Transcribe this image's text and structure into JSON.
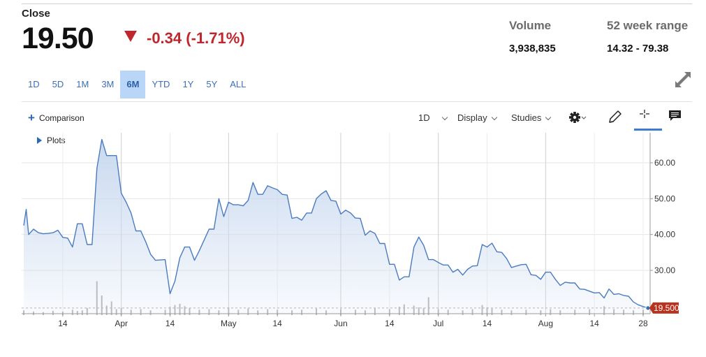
{
  "header": {
    "close_label": "Close",
    "price": "19.50",
    "change": "-0.34 (-1.71%)",
    "change_direction": "down",
    "change_color": "#c0262e",
    "volume_label": "Volume",
    "volume_value": "3,938,835",
    "range_label": "52 week range",
    "range_value": "14.32 - 79.38"
  },
  "ranges": [
    {
      "label": "1D",
      "active": false
    },
    {
      "label": "5D",
      "active": false
    },
    {
      "label": "1M",
      "active": false
    },
    {
      "label": "3M",
      "active": false
    },
    {
      "label": "6M",
      "active": true
    },
    {
      "label": "YTD",
      "active": false
    },
    {
      "label": "1Y",
      "active": false
    },
    {
      "label": "5Y",
      "active": false
    },
    {
      "label": "ALL",
      "active": false
    }
  ],
  "toolbar": {
    "comparison_label": "Comparison",
    "plots_label": "Plots",
    "interval_label": "1D",
    "display_label": "Display",
    "studies_label": "Studies",
    "icons": [
      "gear-icon",
      "pencil-icon",
      "crosshair-icon",
      "comment-icon"
    ]
  },
  "chart_data": {
    "type": "area",
    "line_color": "#4a7bbf",
    "fill_color": "#c9d9ef",
    "last_price_label": "19.500",
    "last_price_color": "#b8321f",
    "ylim": [
      20,
      68
    ],
    "y_ticks": [
      {
        "value": 30,
        "label": "30.00"
      },
      {
        "value": 40,
        "label": "40.00"
      },
      {
        "value": 50,
        "label": "50.00"
      },
      {
        "value": 60,
        "label": "60.00"
      }
    ],
    "x_range": [
      0,
      128
    ],
    "x_ticks": [
      {
        "x": 8,
        "label": "14"
      },
      {
        "x": 20,
        "label": "Apr"
      },
      {
        "x": 30,
        "label": "14"
      },
      {
        "x": 42,
        "label": "May"
      },
      {
        "x": 52,
        "label": "14"
      },
      {
        "x": 65,
        "label": "Jun"
      },
      {
        "x": 75,
        "label": "14"
      },
      {
        "x": 85,
        "label": "Jul"
      },
      {
        "x": 95,
        "label": "14"
      },
      {
        "x": 107,
        "label": "Aug"
      },
      {
        "x": 117,
        "label": "14"
      },
      {
        "x": 127,
        "label": "28"
      }
    ],
    "month_lines": [
      20,
      42,
      65,
      85,
      107
    ],
    "series": [
      {
        "values": [
          [
            0,
            42.5
          ],
          [
            0.5,
            47
          ],
          [
            1,
            40
          ],
          [
            2,
            41.5
          ],
          [
            3,
            40.5
          ],
          [
            4,
            40.2
          ],
          [
            5,
            40.3
          ],
          [
            6,
            40.5
          ],
          [
            7,
            41.2
          ],
          [
            8,
            39.2
          ],
          [
            9,
            39
          ],
          [
            10,
            36.5
          ],
          [
            11,
            43
          ],
          [
            12,
            43
          ],
          [
            13,
            37.2
          ],
          [
            14,
            37.2
          ],
          [
            15,
            58.5
          ],
          [
            16,
            66.5
          ],
          [
            17,
            62
          ],
          [
            18,
            62
          ],
          [
            19,
            62
          ],
          [
            20,
            51.5
          ],
          [
            21,
            49
          ],
          [
            22,
            46
          ],
          [
            23,
            41
          ],
          [
            24,
            41
          ],
          [
            25,
            38
          ],
          [
            26,
            34.5
          ],
          [
            27,
            32.8
          ],
          [
            28,
            32.9
          ],
          [
            29,
            33
          ],
          [
            30,
            23.5
          ],
          [
            31,
            27
          ],
          [
            32,
            33.5
          ],
          [
            33,
            36.5
          ],
          [
            34,
            36.5
          ],
          [
            35,
            32.8
          ],
          [
            36,
            35.5
          ],
          [
            37,
            38.5
          ],
          [
            38,
            41.5
          ],
          [
            39,
            41.5
          ],
          [
            40,
            50
          ],
          [
            41,
            45
          ],
          [
            42,
            49
          ],
          [
            43,
            48.3
          ],
          [
            44,
            48.3
          ],
          [
            45,
            48
          ],
          [
            46,
            49.5
          ],
          [
            47,
            54.5
          ],
          [
            48,
            51.2
          ],
          [
            49,
            51.2
          ],
          [
            50,
            53.6
          ],
          [
            51,
            53
          ],
          [
            52,
            52.5
          ],
          [
            53,
            51.2
          ],
          [
            54,
            51
          ],
          [
            55,
            44.5
          ],
          [
            56,
            44.8
          ],
          [
            57,
            44
          ],
          [
            58,
            46
          ],
          [
            59,
            46
          ],
          [
            60,
            50
          ],
          [
            61,
            51.3
          ],
          [
            62,
            52.2
          ],
          [
            63,
            49.5
          ],
          [
            64,
            49.3
          ],
          [
            65,
            45.7
          ],
          [
            66,
            46.8
          ],
          [
            67,
            46
          ],
          [
            68,
            44.6
          ],
          [
            69,
            44.5
          ],
          [
            70,
            39.8
          ],
          [
            71,
            41
          ],
          [
            72,
            40.3
          ],
          [
            73,
            37.5
          ],
          [
            74,
            37.5
          ],
          [
            75,
            31.7
          ],
          [
            76,
            31.7
          ],
          [
            77,
            27.3
          ],
          [
            78,
            28.2
          ],
          [
            79,
            28.2
          ],
          [
            80,
            36.5
          ],
          [
            81,
            39.3
          ],
          [
            82,
            37
          ],
          [
            83,
            33
          ],
          [
            84,
            33
          ],
          [
            85,
            32.2
          ],
          [
            86,
            31.5
          ],
          [
            87,
            31.5
          ],
          [
            88,
            29.5
          ],
          [
            89,
            30.3
          ],
          [
            90,
            28.7
          ],
          [
            91,
            30.3
          ],
          [
            92,
            31.2
          ],
          [
            93,
            31.3
          ],
          [
            94,
            37.2
          ],
          [
            95,
            36.5
          ],
          [
            96,
            37.6
          ],
          [
            97,
            35.2
          ],
          [
            98,
            35
          ],
          [
            99,
            33.3
          ],
          [
            100,
            30.8
          ],
          [
            101,
            31.2
          ],
          [
            102,
            31.6
          ],
          [
            103,
            31.7
          ],
          [
            104,
            28.8
          ],
          [
            105,
            28.6
          ],
          [
            106,
            27.5
          ],
          [
            107,
            29.5
          ],
          [
            108,
            29.5
          ],
          [
            109,
            27.5
          ],
          [
            110,
            25.8
          ],
          [
            111,
            26.7
          ],
          [
            112,
            26.5
          ],
          [
            113,
            26.5
          ],
          [
            114,
            24.8
          ],
          [
            115,
            24.7
          ],
          [
            116,
            24.2
          ],
          [
            117,
            23.7
          ],
          [
            118,
            23.8
          ],
          [
            119,
            22.3
          ],
          [
            120,
            24.8
          ],
          [
            121,
            23.3
          ],
          [
            122,
            23.5
          ],
          [
            123,
            23
          ],
          [
            124,
            22.8
          ],
          [
            125,
            21.2
          ],
          [
            126,
            20.4
          ],
          [
            127,
            19.9
          ],
          [
            128,
            19.5
          ]
        ]
      }
    ],
    "volume": [
      [
        0,
        0.8
      ],
      [
        2,
        0.6
      ],
      [
        4,
        0.5
      ],
      [
        6,
        0.7
      ],
      [
        8,
        0.6
      ],
      [
        10,
        0.9
      ],
      [
        11,
        0.7
      ],
      [
        12,
        0.8
      ],
      [
        13,
        1.2
      ],
      [
        15,
        5.7
      ],
      [
        16,
        3.3
      ],
      [
        17,
        1.6
      ],
      [
        18,
        2.3
      ],
      [
        19,
        1.0
      ],
      [
        20,
        1.2
      ],
      [
        22,
        0.9
      ],
      [
        24,
        1.0
      ],
      [
        26,
        0.8
      ],
      [
        29,
        0.9
      ],
      [
        30,
        1.4
      ],
      [
        31,
        1.7
      ],
      [
        32,
        1.9
      ],
      [
        33,
        1.5
      ],
      [
        34,
        1.2
      ],
      [
        36,
        0.9
      ],
      [
        38,
        1.0
      ],
      [
        40,
        0.8
      ],
      [
        42,
        1.3
      ],
      [
        44,
        0.9
      ],
      [
        46,
        1.1
      ],
      [
        48,
        0.8
      ],
      [
        50,
        1.0
      ],
      [
        52,
        0.9
      ],
      [
        55,
        0.8
      ],
      [
        57,
        0.9
      ],
      [
        60,
        1.1
      ],
      [
        62,
        0.8
      ],
      [
        65,
        1.0
      ],
      [
        68,
        0.9
      ],
      [
        70,
        0.8
      ],
      [
        72,
        1.2
      ],
      [
        75,
        1.0
      ],
      [
        77,
        1.4
      ],
      [
        78,
        1.8
      ],
      [
        80,
        1.6
      ],
      [
        81,
        1.3
      ],
      [
        82,
        1.2
      ],
      [
        83,
        3.0
      ],
      [
        85,
        1.0
      ],
      [
        87,
        0.9
      ],
      [
        90,
        0.8
      ],
      [
        92,
        1.0
      ],
      [
        94,
        1.7
      ],
      [
        95,
        1.3
      ],
      [
        96,
        1.1
      ],
      [
        98,
        0.9
      ],
      [
        100,
        0.8
      ],
      [
        103,
        0.9
      ],
      [
        106,
        0.8
      ],
      [
        108,
        1.0
      ],
      [
        110,
        0.8
      ],
      [
        113,
        0.9
      ],
      [
        116,
        1.0
      ],
      [
        119,
        1.5
      ],
      [
        121,
        1.0
      ],
      [
        123,
        0.9
      ],
      [
        125,
        0.8
      ],
      [
        127,
        0.9
      ]
    ]
  }
}
